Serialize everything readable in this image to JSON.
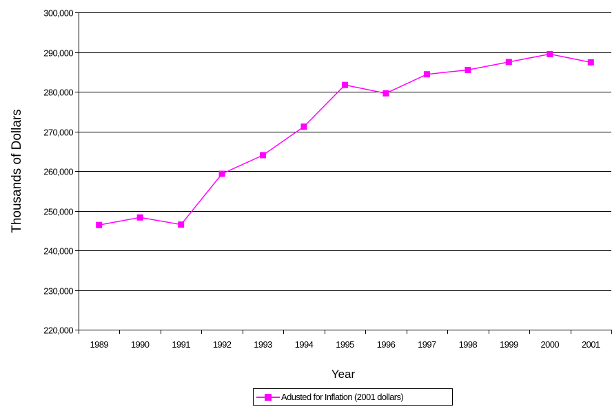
{
  "chart_data": {
    "type": "line",
    "title": "",
    "xlabel": "Year",
    "ylabel": "Thousands of Dollars",
    "categories": [
      "1989",
      "1990",
      "1991",
      "1992",
      "1993",
      "1994",
      "1995",
      "1996",
      "1997",
      "1998",
      "1999",
      "2000",
      "2001"
    ],
    "series": [
      {
        "name": "Adusted for Inflation (2001 dollars)",
        "values": [
          246400,
          248300,
          246500,
          259300,
          264000,
          271200,
          281700,
          279600,
          284400,
          285500,
          287500,
          289500,
          287400
        ],
        "color": "#ff00ff",
        "marker": "square"
      }
    ],
    "ylim": [
      220000,
      300000
    ],
    "yticks": [
      "220,000",
      "230,000",
      "240,000",
      "250,000",
      "260,000",
      "270,000",
      "280,000",
      "290,000",
      "300,000"
    ],
    "ytick_values": [
      220000,
      230000,
      240000,
      250000,
      260000,
      270000,
      280000,
      290000,
      300000
    ],
    "grid": true,
    "legend_position": "bottom"
  },
  "colors": {
    "series": "#ff00ff",
    "grid": "#000000",
    "background": "#ffffff"
  }
}
